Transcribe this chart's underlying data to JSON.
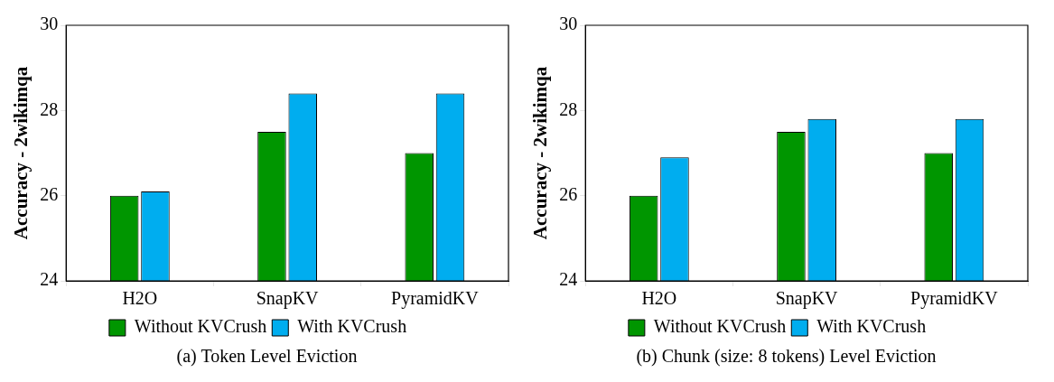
{
  "chart_data": [
    {
      "type": "bar",
      "ylabel": "Accuracy - 2wikimqa",
      "categories": [
        "H2O",
        "SnapKV",
        "PyramidKV"
      ],
      "series": [
        {
          "name": "Without KVCrush",
          "color": "#009600",
          "values": [
            26.0,
            27.5,
            27.0
          ]
        },
        {
          "name": "With KVCrush",
          "color": "#00adef",
          "values": [
            26.1,
            28.4,
            28.4
          ]
        }
      ],
      "ylim": [
        24,
        30
      ],
      "yticks": [
        24,
        26,
        28,
        30
      ],
      "grid": false,
      "legend": "bottom",
      "annotations": [
        "(a) Token Level Eviction"
      ]
    },
    {
      "type": "bar",
      "ylabel": "Accuracy - 2wikimqa",
      "categories": [
        "H2O",
        "SnapKV",
        "PyramidKV"
      ],
      "series": [
        {
          "name": "Without KVCrush",
          "color": "#009600",
          "values": [
            26.0,
            27.5,
            27.0
          ]
        },
        {
          "name": "With KVCrush",
          "color": "#00adef",
          "values": [
            26.9,
            27.8,
            27.8
          ]
        }
      ],
      "ylim": [
        24,
        30
      ],
      "yticks": [
        24,
        26,
        28,
        30
      ],
      "grid": false,
      "legend": "bottom",
      "annotations": [
        "(b) Chunk (size: 8 tokens) Level Eviction"
      ]
    }
  ]
}
